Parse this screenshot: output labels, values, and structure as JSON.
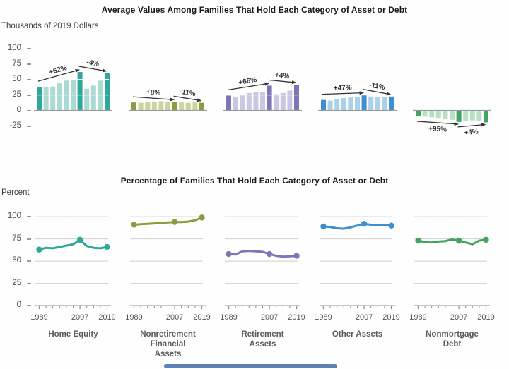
{
  "titles": {
    "top": "Average Values Among Families That Hold Each Category of Asset or Debt",
    "bottom": "Percentage of Families That Hold Each Category of Asset or Debt"
  },
  "axis": {
    "top_unit": "Thousands of 2019 Dollars",
    "bottom_unit": "Percent",
    "top_y_ticks": [
      100,
      75,
      50,
      25,
      0,
      -25
    ],
    "bottom_y_ticks": [
      100,
      75,
      50,
      25,
      0
    ],
    "x_tick_labels": [
      "1989",
      "2007",
      "2019"
    ]
  },
  "categories": [
    {
      "name": "Home Equity",
      "label_lines": [
        "Home Equity"
      ],
      "color_dark": "#2FA89B",
      "color_light": "#ABDAD2"
    },
    {
      "name": "Nonretirement Financial Assets",
      "label_lines": [
        "Nonretirement",
        "Financial",
        "Assets"
      ],
      "color_dark": "#8B9C3E",
      "color_light": "#CBD49C"
    },
    {
      "name": "Retirement Assets",
      "label_lines": [
        "Retirement",
        "Assets"
      ],
      "color_dark": "#7C76B7",
      "color_light": "#C9C7E3"
    },
    {
      "name": "Other Assets",
      "label_lines": [
        "Other Assets"
      ],
      "color_dark": "#3E8FD0",
      "color_light": "#ABD0EA"
    },
    {
      "name": "Nonmortgage Debt",
      "label_lines": [
        "Nonmortgage",
        "Debt"
      ],
      "color_dark": "#42A55F",
      "color_light": "#B8E1C4"
    }
  ],
  "chart_data": [
    {
      "type": "bar",
      "title": "Average Values Among Families That Hold Each Category of Asset or Debt",
      "ylabel": "Thousands of 2019 Dollars",
      "ylim": [
        -25,
        100
      ],
      "x": [
        1989,
        1992,
        1995,
        1998,
        2001,
        2004,
        2007,
        2010,
        2013,
        2016,
        2019
      ],
      "highlight_years": [
        1989,
        2007,
        2019
      ],
      "series": [
        {
          "name": "Home Equity",
          "values": [
            38,
            38,
            38.5,
            45,
            48,
            50,
            62,
            35,
            40,
            48,
            60
          ],
          "annotations": [
            {
              "label": "+62%",
              "from_year": 1989,
              "to_year": 2007
            },
            {
              "label": "-4%",
              "from_year": 2007,
              "to_year": 2019
            }
          ]
        },
        {
          "name": "Nonretirement Financial Assets",
          "values": [
            13,
            12.5,
            13.5,
            14.5,
            15,
            14.5,
            14,
            13,
            12.5,
            13,
            12.5
          ],
          "annotations": [
            {
              "label": "+8%",
              "from_year": 1989,
              "to_year": 2007
            },
            {
              "label": "-11%",
              "from_year": 2007,
              "to_year": 2019
            }
          ]
        },
        {
          "name": "Retirement Assets",
          "values": [
            24,
            22,
            25,
            28,
            30,
            30,
            40,
            26,
            28,
            32,
            41.5
          ],
          "annotations": [
            {
              "label": "+66%",
              "from_year": 1989,
              "to_year": 2007
            },
            {
              "label": "+4%",
              "from_year": 2007,
              "to_year": 2019
            }
          ]
        },
        {
          "name": "Other Assets",
          "values": [
            17,
            16,
            18,
            20,
            21,
            22,
            25,
            22.5,
            21,
            22,
            22.5
          ],
          "annotations": [
            {
              "label": "+47%",
              "from_year": 1989,
              "to_year": 2007
            },
            {
              "label": "-11%",
              "from_year": 2007,
              "to_year": 2019
            }
          ]
        },
        {
          "name": "Nonmortgage Debt",
          "values": [
            -9.5,
            -10,
            -11,
            -12,
            -13,
            -15,
            -18.5,
            -17,
            -16,
            -17,
            -19.2
          ],
          "annotations": [
            {
              "label": "+95%",
              "from_year": 1989,
              "to_year": 2007
            },
            {
              "label": "+4%",
              "from_year": 2007,
              "to_year": 2019
            }
          ]
        }
      ]
    },
    {
      "type": "line",
      "title": "Percentage of Families That Hold Each Category of Asset or Debt",
      "ylabel": "Percent",
      "ylim": [
        0,
        100
      ],
      "x": [
        1989,
        1992,
        1995,
        1998,
        2001,
        2004,
        2007,
        2010,
        2013,
        2016,
        2019
      ],
      "marker_years": [
        1989,
        2007,
        2019
      ],
      "x_tick_labels": [
        "1989",
        "2007",
        "2019"
      ],
      "series": [
        {
          "name": "Home Equity",
          "values": [
            63,
            65,
            64.5,
            66,
            67.5,
            69,
            74,
            67,
            65,
            64.5,
            66
          ]
        },
        {
          "name": "Nonretirement Financial Assets",
          "values": [
            91,
            91.5,
            92,
            92.5,
            93,
            93.5,
            94,
            94,
            94.5,
            96,
            99
          ]
        },
        {
          "name": "Retirement Assets",
          "values": [
            58,
            57.5,
            61,
            61.5,
            61,
            60.5,
            58,
            56,
            55,
            55.5,
            56
          ]
        },
        {
          "name": "Other Assets",
          "values": [
            89,
            88.5,
            87,
            86.5,
            88,
            90,
            92,
            91,
            90.5,
            91,
            90
          ]
        },
        {
          "name": "Nonmortgage Debt",
          "values": [
            73,
            71.5,
            71,
            72,
            72.5,
            74.5,
            73,
            71,
            69,
            73,
            74
          ]
        }
      ]
    }
  ],
  "footer": {
    "progress_bar_color": "#5E81B5"
  }
}
